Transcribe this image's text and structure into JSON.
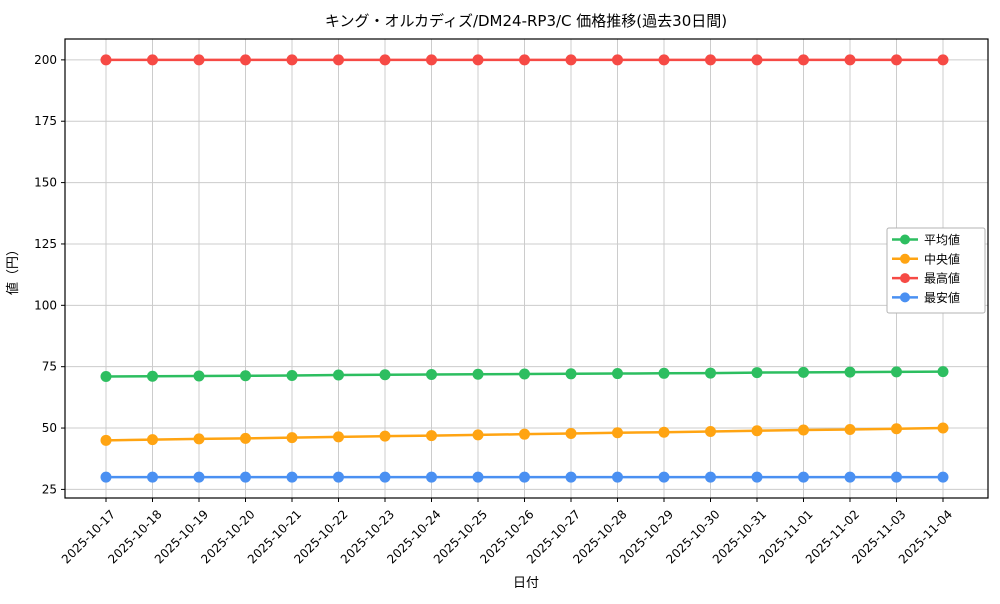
{
  "chart_data": {
    "type": "line",
    "title": "キング・オルカディズ/DM24-RP3/C 価格推移(過去30日間)",
    "xlabel": "日付",
    "ylabel": "値（円）",
    "categories": [
      "2025-10-17",
      "2025-10-18",
      "2025-10-19",
      "2025-10-20",
      "2025-10-21",
      "2025-10-22",
      "2025-10-23",
      "2025-10-24",
      "2025-10-25",
      "2025-10-26",
      "2025-10-27",
      "2025-10-28",
      "2025-10-29",
      "2025-10-30",
      "2025-10-31",
      "2025-11-01",
      "2025-11-02",
      "2025-11-03",
      "2025-11-04"
    ],
    "series": [
      {
        "key": "average",
        "name": "平均値",
        "color": "#2dbe60",
        "values": [
          71.0,
          71.1,
          71.2,
          71.3,
          71.4,
          71.6,
          71.7,
          71.8,
          71.9,
          72.0,
          72.1,
          72.2,
          72.3,
          72.4,
          72.6,
          72.7,
          72.8,
          72.9,
          73.0
        ]
      },
      {
        "key": "median",
        "name": "中央値",
        "color": "#ffa412",
        "values": [
          45.0,
          45.3,
          45.6,
          45.8,
          46.1,
          46.4,
          46.7,
          46.9,
          47.2,
          47.5,
          47.8,
          48.1,
          48.3,
          48.6,
          48.9,
          49.2,
          49.4,
          49.7,
          50.0
        ]
      },
      {
        "key": "max",
        "name": "最高値",
        "color": "#f64a45",
        "values": [
          200,
          200,
          200,
          200,
          200,
          200,
          200,
          200,
          200,
          200,
          200,
          200,
          200,
          200,
          200,
          200,
          200,
          200,
          200
        ]
      },
      {
        "key": "min",
        "name": "最安値",
        "color": "#4a90f2",
        "values": [
          30,
          30,
          30,
          30,
          30,
          30,
          30,
          30,
          30,
          30,
          30,
          30,
          30,
          30,
          30,
          30,
          30,
          30,
          30
        ]
      }
    ],
    "yticks": [
      25,
      50,
      75,
      100,
      125,
      150,
      175,
      200
    ],
    "ylim": [
      21.5,
      208.5
    ],
    "grid": true,
    "grid_color": "#cccccc",
    "spine_color": "#000000",
    "legend_position": "right",
    "x_tick_rotation": 45
  }
}
